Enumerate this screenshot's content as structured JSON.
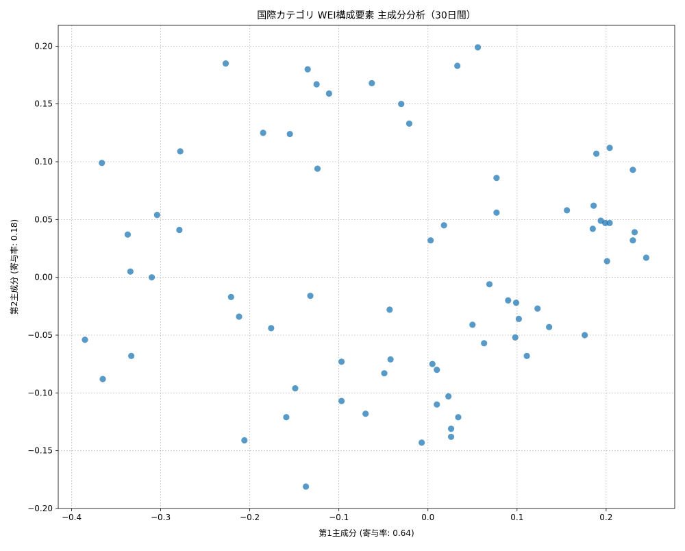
{
  "chart_data": {
    "type": "scatter",
    "title": "国際カテゴリ WEI構成要素 主成分分析（30日間）",
    "xlabel": "第1主成分 (寄与率: 0.64)",
    "ylabel": "第2主成分 (寄与率: 0.18)",
    "xlim": [
      -0.415,
      0.277
    ],
    "ylim": [
      -0.2,
      0.218
    ],
    "xticks": [
      -0.4,
      -0.3,
      -0.2,
      -0.1,
      0.0,
      0.1,
      0.2
    ],
    "xtick_labels": [
      "−0.4",
      "−0.3",
      "−0.2",
      "−0.1",
      "0.0",
      "0.1",
      "0.2"
    ],
    "yticks": [
      -0.2,
      -0.15,
      -0.1,
      -0.05,
      0.0,
      0.05,
      0.1,
      0.15,
      0.2
    ],
    "ytick_labels": [
      "−0.20",
      "−0.15",
      "−0.10",
      "−0.05",
      "0.00",
      "0.05",
      "0.10",
      "0.15",
      "0.20"
    ],
    "grid": true,
    "point_color": "#1f77b4",
    "points": [
      [
        0.056,
        0.199
      ],
      [
        -0.227,
        0.185
      ],
      [
        -0.135,
        0.18
      ],
      [
        0.033,
        0.183
      ],
      [
        -0.125,
        0.167
      ],
      [
        -0.063,
        0.168
      ],
      [
        -0.111,
        0.159
      ],
      [
        -0.03,
        0.15
      ],
      [
        -0.021,
        0.133
      ],
      [
        -0.185,
        0.125
      ],
      [
        -0.155,
        0.124
      ],
      [
        -0.278,
        0.109
      ],
      [
        -0.366,
        0.099
      ],
      [
        -0.124,
        0.094
      ],
      [
        0.204,
        0.112
      ],
      [
        0.189,
        0.107
      ],
      [
        0.23,
        0.093
      ],
      [
        0.077,
        0.086
      ],
      [
        0.186,
        0.062
      ],
      [
        0.156,
        0.058
      ],
      [
        0.077,
        0.056
      ],
      [
        -0.304,
        0.054
      ],
      [
        0.194,
        0.049
      ],
      [
        0.199,
        0.047
      ],
      [
        0.204,
        0.047
      ],
      [
        0.185,
        0.042
      ],
      [
        0.018,
        0.045
      ],
      [
        -0.279,
        0.041
      ],
      [
        -0.337,
        0.037
      ],
      [
        0.232,
        0.039
      ],
      [
        0.003,
        0.032
      ],
      [
        0.23,
        0.032
      ],
      [
        0.201,
        0.014
      ],
      [
        0.245,
        0.017
      ],
      [
        -0.334,
        0.005
      ],
      [
        -0.31,
        0.0
      ],
      [
        0.069,
        -0.006
      ],
      [
        -0.221,
        -0.017
      ],
      [
        -0.132,
        -0.016
      ],
      [
        0.09,
        -0.02
      ],
      [
        0.099,
        -0.022
      ],
      [
        0.123,
        -0.027
      ],
      [
        -0.043,
        -0.028
      ],
      [
        -0.212,
        -0.034
      ],
      [
        0.102,
        -0.036
      ],
      [
        0.05,
        -0.041
      ],
      [
        -0.176,
        -0.044
      ],
      [
        0.136,
        -0.043
      ],
      [
        0.098,
        -0.052
      ],
      [
        0.176,
        -0.05
      ],
      [
        -0.385,
        -0.054
      ],
      [
        0.063,
        -0.057
      ],
      [
        -0.333,
        -0.068
      ],
      [
        0.111,
        -0.068
      ],
      [
        -0.097,
        -0.073
      ],
      [
        -0.042,
        -0.071
      ],
      [
        0.005,
        -0.075
      ],
      [
        0.01,
        -0.08
      ],
      [
        -0.049,
        -0.083
      ],
      [
        -0.365,
        -0.088
      ],
      [
        -0.149,
        -0.096
      ],
      [
        0.023,
        -0.103
      ],
      [
        -0.097,
        -0.107
      ],
      [
        0.01,
        -0.11
      ],
      [
        -0.07,
        -0.118
      ],
      [
        -0.159,
        -0.121
      ],
      [
        0.034,
        -0.121
      ],
      [
        0.026,
        -0.131
      ],
      [
        0.026,
        -0.138
      ],
      [
        -0.206,
        -0.141
      ],
      [
        -0.007,
        -0.143
      ],
      [
        -0.137,
        -0.181
      ]
    ]
  }
}
